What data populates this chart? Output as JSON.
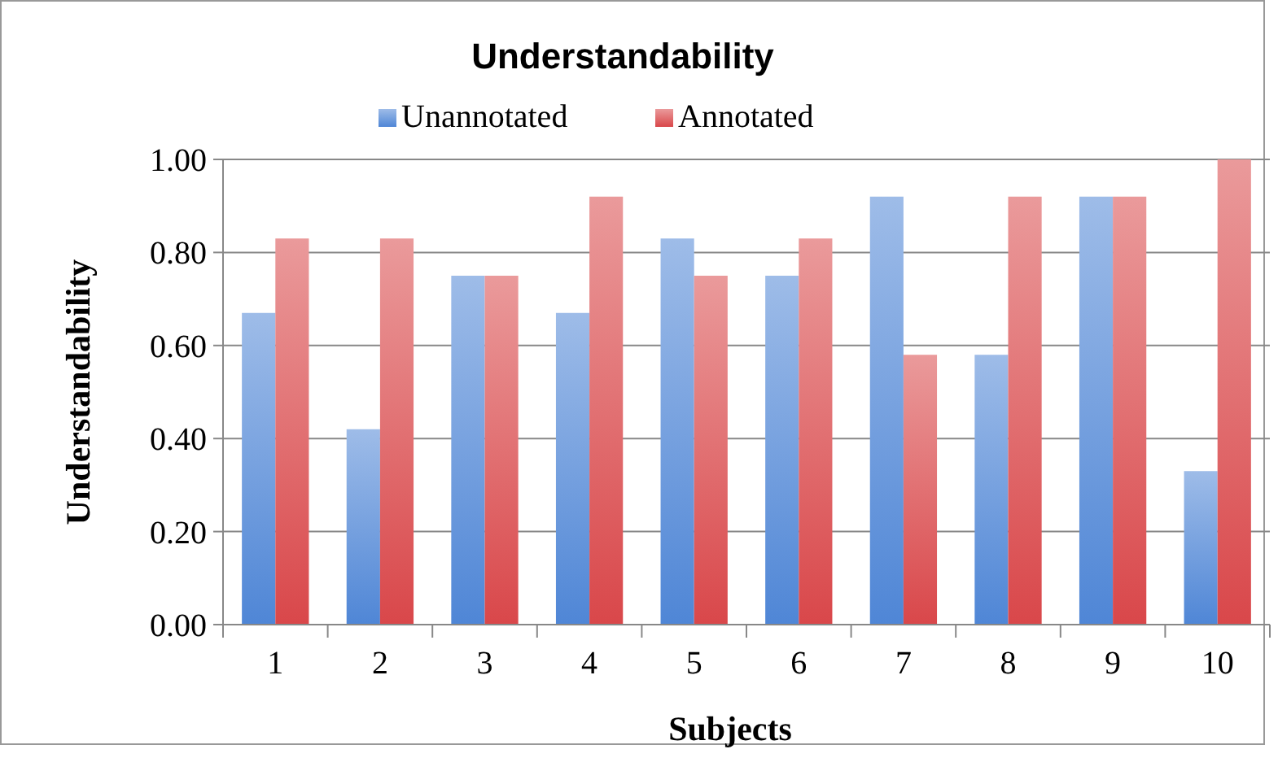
{
  "chart_data": {
    "type": "bar",
    "title": "Understandability",
    "xlabel": "Subjects",
    "ylabel": "Understandability",
    "categories": [
      "1",
      "2",
      "3",
      "4",
      "5",
      "6",
      "7",
      "8",
      "9",
      "10"
    ],
    "series": [
      {
        "name": "Unannotated",
        "color": "#4f86d6",
        "values": [
          0.67,
          0.42,
          0.75,
          0.67,
          0.83,
          0.75,
          0.92,
          0.58,
          0.92,
          0.33
        ]
      },
      {
        "name": "Annotated",
        "color": "#d9474a",
        "values": [
          0.83,
          0.83,
          0.75,
          0.92,
          0.75,
          0.83,
          0.58,
          0.92,
          0.92,
          1.0
        ]
      }
    ],
    "ylim": [
      0,
      1
    ],
    "yticks": [
      {
        "value": 0,
        "label": "0.00"
      },
      {
        "value": 0.2,
        "label": "0.20"
      },
      {
        "value": 0.4,
        "label": "0.40"
      },
      {
        "value": 0.6,
        "label": "0.60"
      },
      {
        "value": 0.8,
        "label": "0.80"
      },
      {
        "value": 1,
        "label": "1.00"
      }
    ],
    "grid": "y",
    "legend": "top"
  }
}
